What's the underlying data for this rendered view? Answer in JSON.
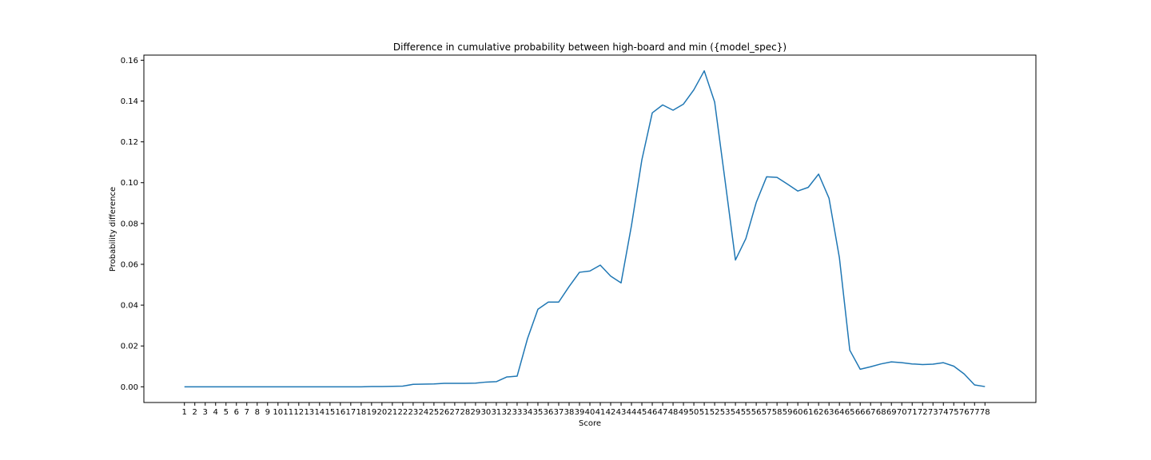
{
  "chart_data": {
    "type": "line",
    "title": "Difference in cumulative probability between high-board and min ({model_spec})",
    "xlabel": "Score",
    "ylabel": "Probability difference",
    "x": [
      1,
      2,
      3,
      4,
      5,
      6,
      7,
      8,
      9,
      10,
      11,
      12,
      13,
      14,
      15,
      16,
      17,
      18,
      19,
      20,
      21,
      22,
      23,
      24,
      25,
      26,
      27,
      28,
      29,
      30,
      31,
      32,
      33,
      34,
      35,
      36,
      37,
      38,
      39,
      40,
      41,
      42,
      43,
      44,
      45,
      46,
      47,
      48,
      49,
      50,
      51,
      52,
      53,
      54,
      55,
      56,
      57,
      58,
      59,
      60,
      61,
      62,
      63,
      64,
      65,
      66,
      67,
      68,
      69,
      70,
      71,
      72,
      73,
      74,
      75,
      76,
      77,
      78
    ],
    "xticks": [
      "1",
      "2",
      "3",
      "4",
      "5",
      "6",
      "7",
      "8",
      "9",
      "10",
      "11",
      "12",
      "13",
      "14",
      "15",
      "16",
      "17",
      "18",
      "19",
      "20",
      "21",
      "22",
      "23",
      "24",
      "25",
      "26",
      "27",
      "28",
      "29",
      "30",
      "31",
      "32",
      "33",
      "34",
      "35",
      "36",
      "37",
      "38",
      "39",
      "40",
      "41",
      "42",
      "43",
      "44",
      "45",
      "46",
      "47",
      "48",
      "49",
      "50",
      "51",
      "52",
      "53",
      "54",
      "55",
      "56",
      "57",
      "58",
      "59",
      "60",
      "61",
      "62",
      "63",
      "64",
      "65",
      "66",
      "67",
      "68",
      "69",
      "70",
      "71",
      "72",
      "73",
      "74",
      "75",
      "76",
      "77",
      "78"
    ],
    "yticks": [
      "0.00",
      "0.02",
      "0.04",
      "0.06",
      "0.08",
      "0.10",
      "0.12",
      "0.14",
      "0.16"
    ],
    "ytick_values": [
      0,
      0.02,
      0.04,
      0.06,
      0.08,
      0.1,
      0.12,
      0.14,
      0.16
    ],
    "series": [
      {
        "color": "#1f77b4",
        "values": [
          0,
          0,
          0,
          0,
          0,
          0,
          0,
          0,
          0,
          0,
          0,
          0,
          0,
          0,
          0,
          0,
          0,
          0,
          0.0001,
          0.0001,
          0.0002,
          0.0003,
          0.0012,
          0.0013,
          0.0014,
          0.0017,
          0.0017,
          0.0017,
          0.0018,
          0.0023,
          0.0025,
          0.0048,
          0.0052,
          0.0236,
          0.038,
          0.0415,
          0.0415,
          0.0491,
          0.0561,
          0.0567,
          0.0596,
          0.0542,
          0.0509,
          0.079,
          0.1112,
          0.1342,
          0.1381,
          0.1355,
          0.1385,
          0.1455,
          0.1548,
          0.1395,
          0.1011,
          0.0621,
          0.0726,
          0.0903,
          0.1029,
          0.1026,
          0.0993,
          0.0959,
          0.0977,
          0.1042,
          0.0924,
          0.0632,
          0.0179,
          0.0086,
          0.0098,
          0.0112,
          0.0122,
          0.0118,
          0.0112,
          0.0109,
          0.0111,
          0.0118,
          0.0101,
          0.0063,
          0.0009,
          0.0001
        ]
      }
    ],
    "xlim": [
      -2.9,
      82.9
    ],
    "ylim": [
      -0.0077,
      0.1625
    ],
    "grid": false,
    "legend": "none"
  }
}
